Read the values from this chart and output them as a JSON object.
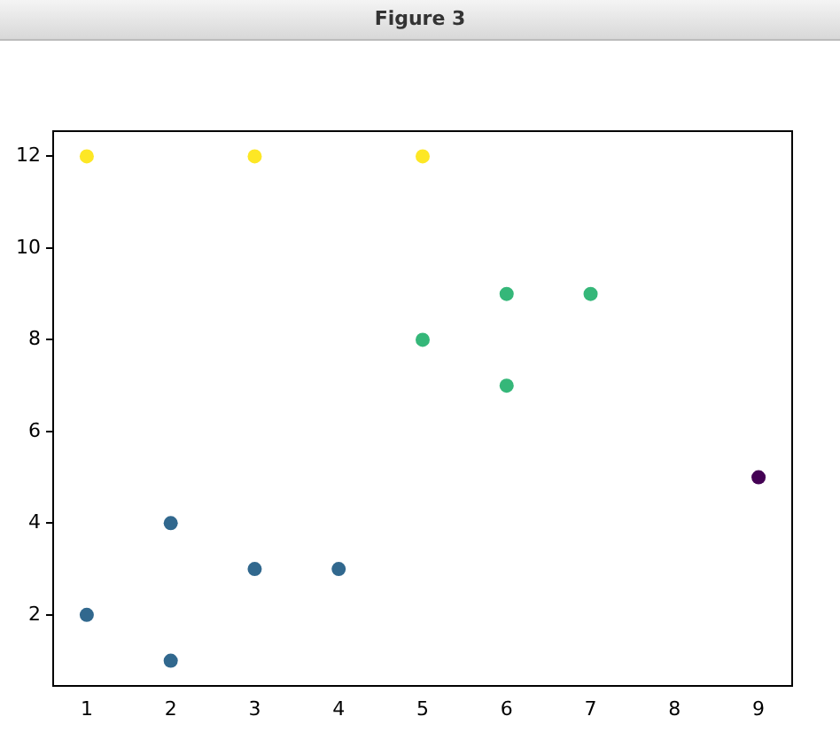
{
  "chart_data": {
    "type": "scatter",
    "title": "Figure 3",
    "marker": "circle",
    "grid": false,
    "legend": false,
    "xlim": [
      0.6,
      9.4
    ],
    "xticks": [
      1,
      2,
      3,
      4,
      5,
      6,
      7,
      8,
      9
    ],
    "ylim": [
      0.45,
      12.55
    ],
    "yticks": [
      2,
      4,
      6,
      8,
      10,
      12
    ],
    "series": [
      {
        "color": "#31688e",
        "x": [
          1,
          2,
          2,
          3,
          4
        ],
        "values": [
          2,
          4,
          1,
          3,
          3
        ]
      },
      {
        "color": "#35b779",
        "x": [
          5,
          6,
          6,
          7
        ],
        "values": [
          8,
          9,
          7,
          9
        ]
      },
      {
        "color": "#fde725",
        "x": [
          1,
          3,
          5
        ],
        "values": [
          12,
          12,
          12
        ]
      },
      {
        "color": "#440154",
        "x": [
          9
        ],
        "values": [
          5
        ]
      }
    ]
  }
}
